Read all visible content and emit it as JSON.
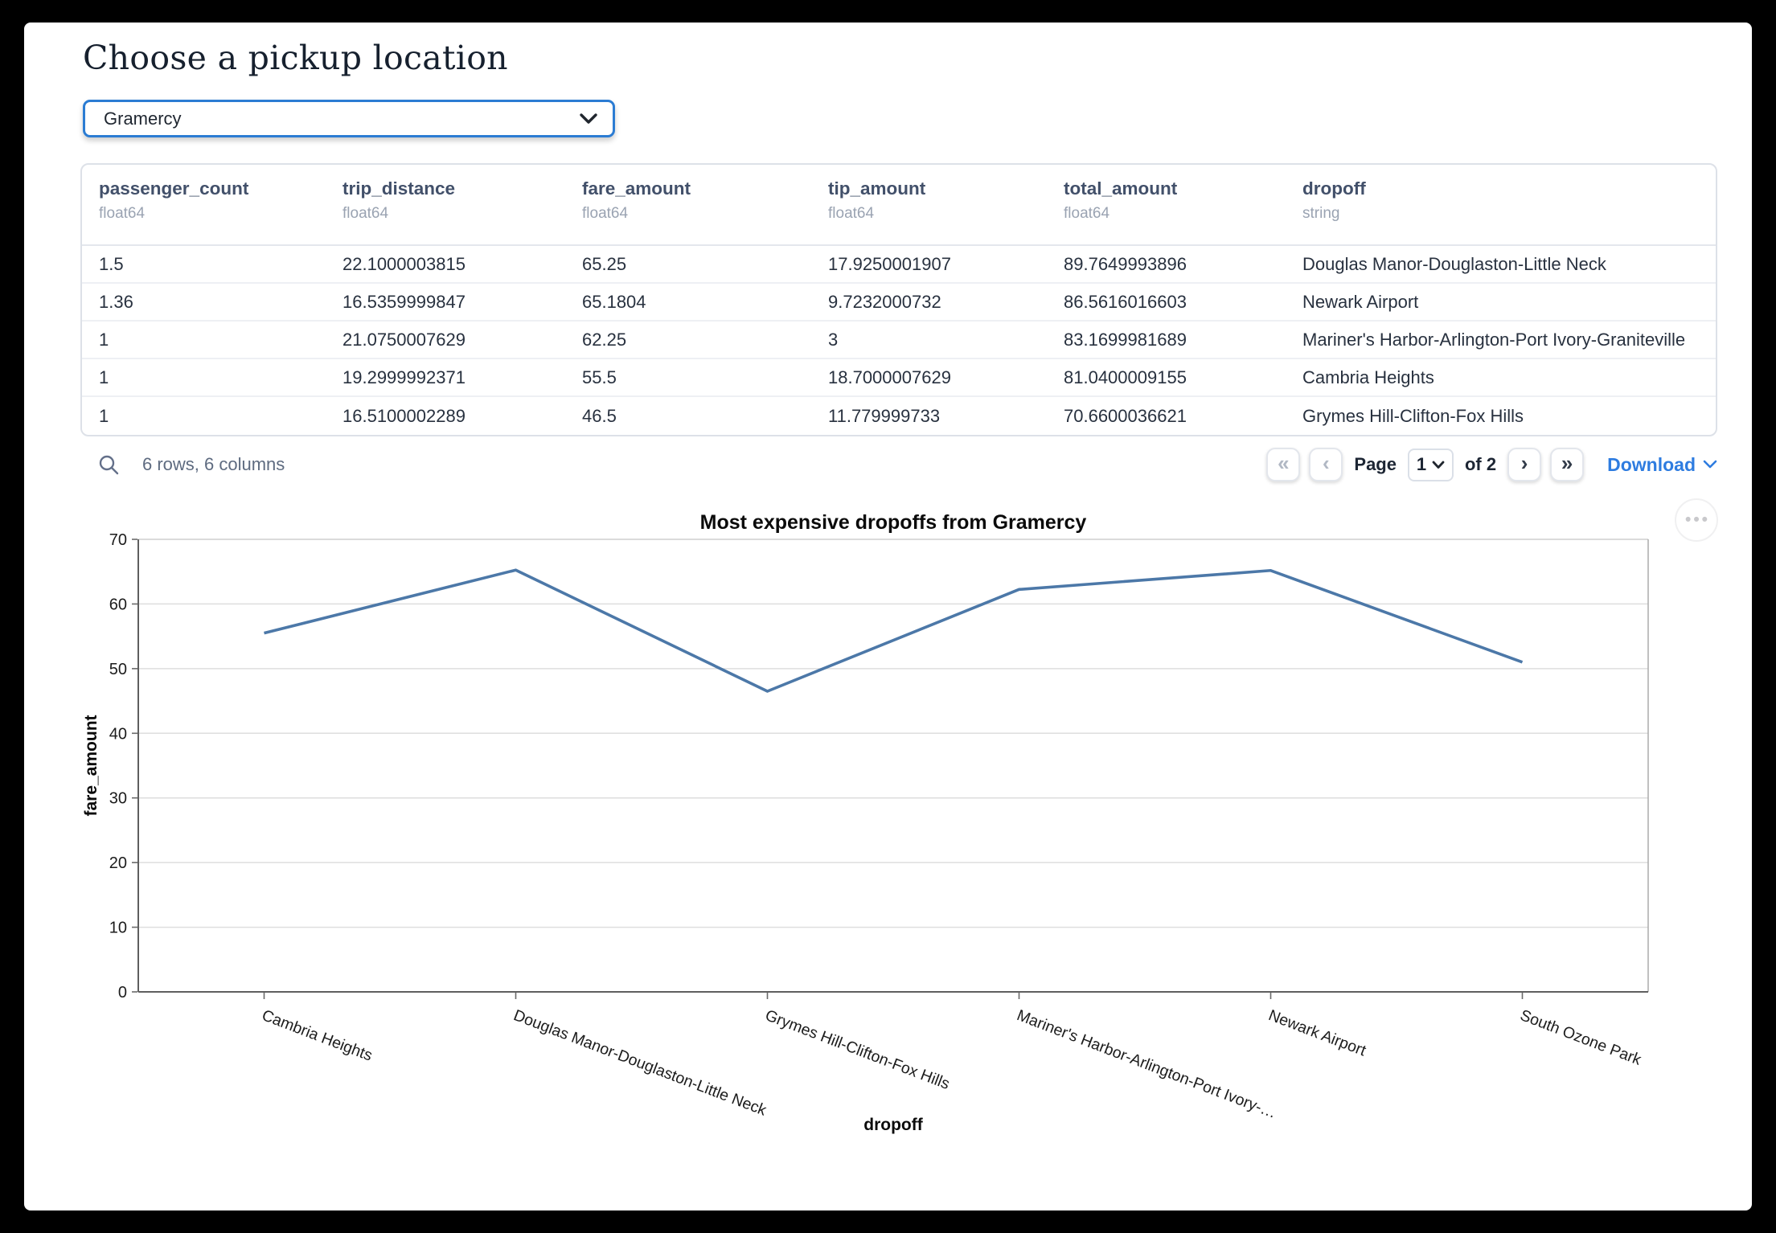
{
  "page": {
    "title": "Choose a pickup location"
  },
  "picker": {
    "value": "Gramercy"
  },
  "table": {
    "columns": [
      {
        "name": "passenger_count",
        "dtype": "float64"
      },
      {
        "name": "trip_distance",
        "dtype": "float64"
      },
      {
        "name": "fare_amount",
        "dtype": "float64"
      },
      {
        "name": "tip_amount",
        "dtype": "float64"
      },
      {
        "name": "total_amount",
        "dtype": "float64"
      },
      {
        "name": "dropoff",
        "dtype": "string"
      }
    ],
    "rows": [
      [
        "1.5",
        "22.1000003815",
        "65.25",
        "17.9250001907",
        "89.7649993896",
        "Douglas Manor-Douglaston-Little Neck"
      ],
      [
        "1.36",
        "16.5359999847",
        "65.1804",
        "9.7232000732",
        "86.5616016603",
        "Newark Airport"
      ],
      [
        "1",
        "21.0750007629",
        "62.25",
        "3",
        "83.1699981689",
        "Mariner's Harbor-Arlington-Port Ivory-Graniteville"
      ],
      [
        "1",
        "19.2999992371",
        "55.5",
        "18.7000007629",
        "81.0400009155",
        "Cambria Heights"
      ],
      [
        "1",
        "16.5100002289",
        "46.5",
        "11.779999733",
        "70.6600036621",
        "Grymes Hill-Clifton-Fox Hills"
      ]
    ],
    "summary": "6 rows, 6 columns",
    "pagination": {
      "first_icon": "«",
      "prev_icon": "‹",
      "page_label": "Page",
      "current_page": "1",
      "total_label": "of 2",
      "next_icon": "›",
      "last_icon": "»",
      "download_label": "Download"
    }
  },
  "icons": {
    "search": "magnifier",
    "picker_chevron": "chevron-down",
    "page_select_chevron": "chevron-down",
    "download_chevron": "chevron-down",
    "options": "•••"
  },
  "colors": {
    "accent_blue": "#2b7cd3",
    "link_blue": "#2e7ce0",
    "line_blue": "#4c78a8"
  },
  "chart_data": {
    "type": "line",
    "title": "Most expensive dropoffs from Gramercy",
    "xlabel": "dropoff",
    "ylabel": "fare_amount",
    "categories": [
      "Cambria Heights",
      "Douglas Manor-Douglaston-Little Neck",
      "Grymes Hill-Clifton-Fox Hills",
      "Mariner's Harbor-Arlington-Port Ivory-…",
      "Newark Airport",
      "South Ozone Park"
    ],
    "values": [
      55.5,
      65.25,
      46.5,
      62.25,
      65.1804,
      51
    ],
    "ylim": [
      0,
      70
    ],
    "yticks": [
      0,
      10,
      20,
      30,
      40,
      50,
      60,
      70
    ],
    "grid": true,
    "legend": "none",
    "line_color": "#4c78a8"
  }
}
